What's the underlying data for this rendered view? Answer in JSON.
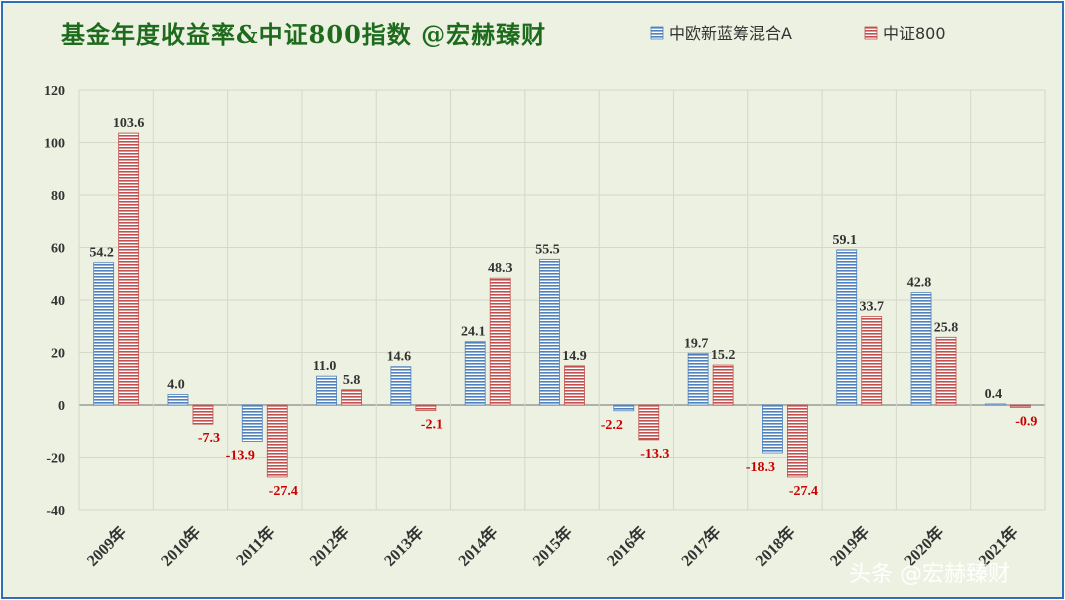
{
  "chart_data": {
    "type": "bar",
    "title": "基金年度收益率&中证800指数 @宏赫臻财",
    "categories": [
      "2009年",
      "2010年",
      "2011年",
      "2012年",
      "2013年",
      "2014年",
      "2015年",
      "2016年",
      "2017年",
      "2018年",
      "2019年",
      "2020年",
      "2021年"
    ],
    "series": [
      {
        "name": "中欧新蓝筹混合A",
        "color": "#4f81bd",
        "values": [
          54.2,
          4.0,
          -13.9,
          11.0,
          14.6,
          24.1,
          55.5,
          -2.2,
          19.7,
          -18.3,
          59.1,
          42.8,
          0.4
        ],
        "labels": [
          "54.2",
          "4.0",
          "-13.9",
          "11.0",
          "14.6",
          "24.1",
          "55.5",
          "-2.2",
          "19.7",
          "-18.3",
          "59.1",
          "42.8",
          "0.4"
        ]
      },
      {
        "name": "中证800",
        "color": "#c0504d",
        "values": [
          103.6,
          -7.3,
          -27.4,
          5.8,
          -2.1,
          48.3,
          14.9,
          -13.3,
          15.2,
          -27.4,
          33.7,
          25.8,
          -0.9
        ],
        "labels": [
          "103.6",
          "-7.3",
          "-27.4",
          "5.8",
          "-2.1",
          "48.3",
          "14.9",
          "-13.3",
          "15.2",
          "-27.4",
          "33.7",
          "25.8",
          "-0.9"
        ]
      }
    ],
    "ylim": [
      -40,
      120
    ],
    "yticks": [
      "-40",
      "-20",
      "0",
      "20",
      "40",
      "60",
      "80",
      "100",
      "120"
    ],
    "grid": true,
    "legend_position": "top-right",
    "label_colors": {
      "positive": "#333333",
      "negative": "#cc0000"
    }
  },
  "watermark": "头条 @宏赫臻财"
}
